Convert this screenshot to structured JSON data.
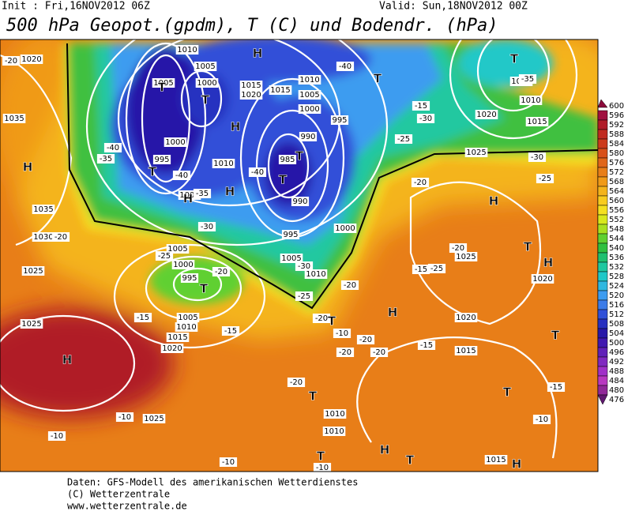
{
  "header": {
    "init": "Init : Fri,16NOV2012 06Z",
    "valid": "Valid: Sun,18NOV2012 00Z",
    "title": "500 hPa Geopot.(gpdm), T (C) und Bodendr. (hPa)"
  },
  "color_scale": {
    "levels": [
      600,
      596,
      592,
      588,
      584,
      580,
      576,
      572,
      568,
      564,
      560,
      556,
      552,
      548,
      544,
      540,
      536,
      532,
      528,
      524,
      520,
      516,
      512,
      508,
      504,
      500,
      496,
      492,
      488,
      484,
      480,
      476
    ],
    "colors": [
      "#8b0a3a",
      "#a01040",
      "#b01c28",
      "#c02a20",
      "#cc3a1c",
      "#d8501a",
      "#e0661a",
      "#e87e18",
      "#f09a18",
      "#f4b41c",
      "#f8cc20",
      "#f4e020",
      "#d8e81c",
      "#a8e020",
      "#60d030",
      "#30c040",
      "#20c070",
      "#20c8a0",
      "#20c8c8",
      "#30b8e0",
      "#3c9cf0",
      "#3c7ce8",
      "#3050d8",
      "#2830c0",
      "#2818a8",
      "#4018b0",
      "#6020b8",
      "#8028c0",
      "#a030c8",
      "#b838c0",
      "#902898",
      "#601870"
    ]
  },
  "map": {
    "isobar_labels": [
      1020,
      1035,
      1035,
      1030,
      1025,
      1010,
      1005,
      1005,
      1000,
      1015,
      1020,
      1015,
      1010,
      1005,
      1000,
      995,
      990,
      1000,
      995,
      1010,
      985,
      1000,
      990,
      995,
      1000,
      1005,
      1010,
      1005,
      1000,
      995,
      1005,
      1010,
      1015,
      1020,
      1025,
      1025,
      1020,
      1025,
      1025,
      1020,
      1020,
      1015,
      1015,
      1010,
      1005,
      1010,
      1010,
      1015
    ],
    "temperature_labels": [
      -20,
      -40,
      -35,
      -30,
      -15,
      -25,
      -40,
      -35,
      -40,
      -35,
      -40,
      -30,
      -20,
      -30,
      -25,
      -20,
      -25,
      -20,
      -20,
      -25,
      -15,
      -30,
      -25,
      -20,
      -15,
      -15,
      -20,
      -10,
      -20,
      -20,
      -20,
      -15,
      -20,
      -15,
      -10,
      -10,
      -10,
      -10,
      -10
    ],
    "pressure_centers": [
      "H",
      "T",
      "T",
      "T",
      "H",
      "T",
      "T",
      "T",
      "H",
      "H",
      "H",
      "T",
      "H",
      "T",
      "H",
      "T",
      "H",
      "T",
      "H",
      "T",
      "T",
      "T",
      "T",
      "H",
      "T",
      "H"
    ]
  },
  "footer": {
    "lines": [
      "Daten: GFS-Modell des amerikanischen Wetterdienstes",
      "(C) Wetterzentrale",
      "www.wetterzentrale.de"
    ]
  }
}
